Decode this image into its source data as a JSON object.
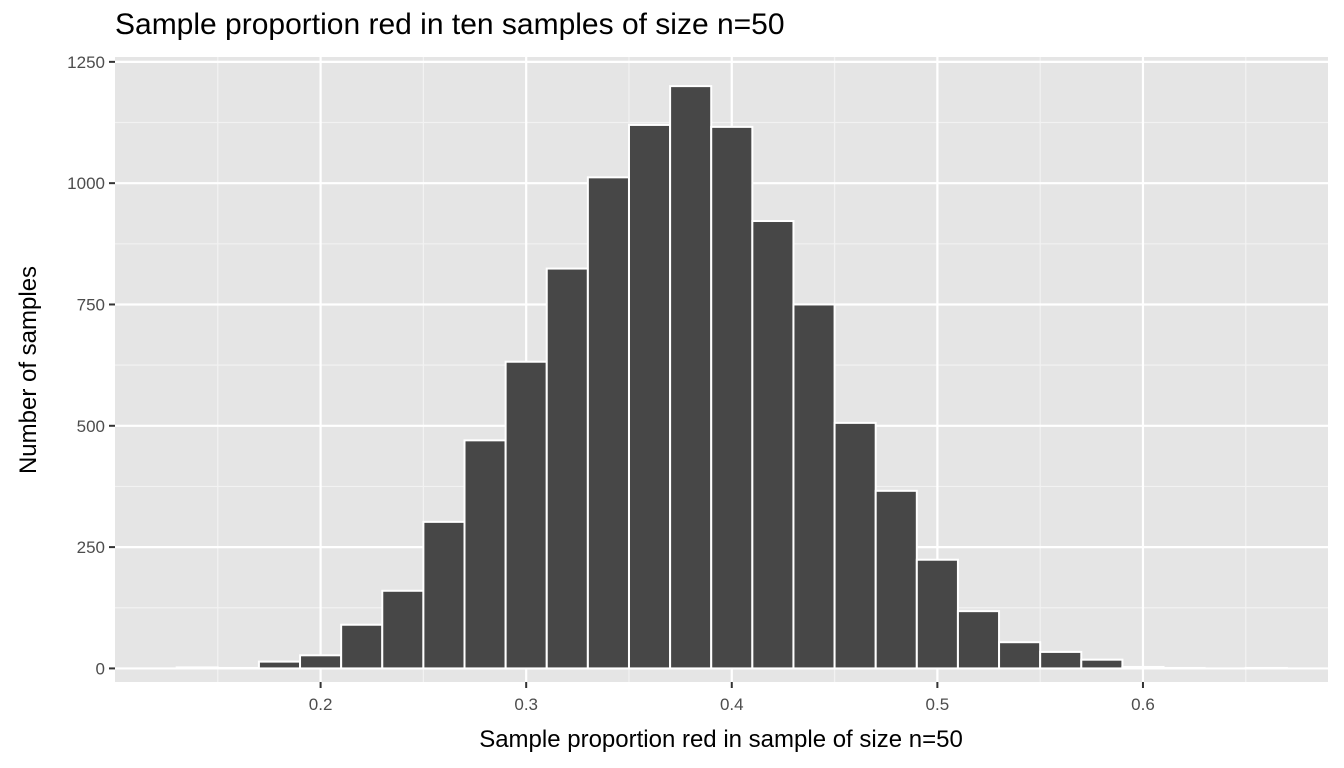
{
  "chart_data": {
    "type": "bar",
    "title": "Sample proportion red in ten samples of size n=50",
    "xlabel": "Sample proportion red in sample of size n=50",
    "ylabel": "Number of samples",
    "xlim": [
      0.1,
      0.69
    ],
    "ylim": [
      -28,
      1260
    ],
    "x_ticks": [
      0.2,
      0.3,
      0.4,
      0.5,
      0.6
    ],
    "x_tick_labels": [
      "0.2",
      "0.3",
      "0.4",
      "0.5",
      "0.6"
    ],
    "y_ticks": [
      0,
      250,
      500,
      750,
      1000,
      1250
    ],
    "y_tick_labels": [
      "0",
      "250",
      "500",
      "750",
      "1000",
      "1250"
    ],
    "bin_width": 0.02,
    "bin_centers": [
      0.14,
      0.16,
      0.18,
      0.2,
      0.22,
      0.24,
      0.26,
      0.28,
      0.3,
      0.32,
      0.34,
      0.36,
      0.38,
      0.4,
      0.42,
      0.44,
      0.46,
      0.48,
      0.5,
      0.52,
      0.54,
      0.56,
      0.58,
      0.6,
      0.62,
      0.64,
      0.66
    ],
    "values": [
      2,
      1,
      14,
      27,
      90,
      160,
      302,
      470,
      632,
      824,
      1012,
      1120,
      1200,
      1116,
      922,
      750,
      506,
      366,
      224,
      118,
      54,
      34,
      18,
      3,
      1,
      0,
      1
    ],
    "bar_color": "#474747",
    "bar_border": "#ffffff",
    "panel_background": "#e5e5e5",
    "grid": true
  }
}
